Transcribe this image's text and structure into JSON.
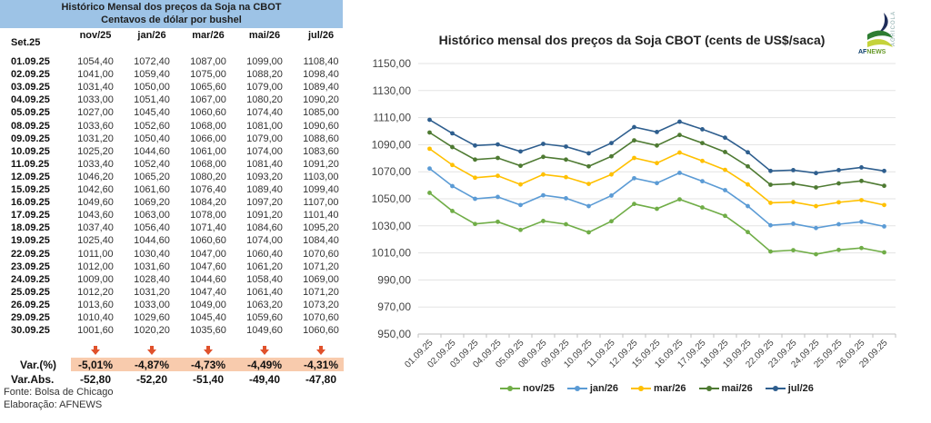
{
  "table": {
    "title": "Histórico Mensal dos preços da Soja na CBOT",
    "subtitle": "Centavos de dólar por bushel",
    "row_header": "Set.25",
    "columns": [
      "nov/25",
      "jan/26",
      "mar/26",
      "mai/26",
      "jul/26"
    ],
    "rows": [
      {
        "date": "01.09.25",
        "values": [
          "1054,40",
          "1072,40",
          "1087,00",
          "1099,00",
          "1108,40"
        ]
      },
      {
        "date": "02.09.25",
        "values": [
          "1041,00",
          "1059,40",
          "1075,00",
          "1088,20",
          "1098,40"
        ]
      },
      {
        "date": "03.09.25",
        "values": [
          "1031,40",
          "1050,00",
          "1065,60",
          "1079,00",
          "1089,40"
        ]
      },
      {
        "date": "04.09.25",
        "values": [
          "1033,00",
          "1051,40",
          "1067,00",
          "1080,20",
          "1090,20"
        ]
      },
      {
        "date": "05.09.25",
        "values": [
          "1027,00",
          "1045,40",
          "1060,60",
          "1074,40",
          "1085,00"
        ]
      },
      {
        "date": "08.09.25",
        "values": [
          "1033,60",
          "1052,60",
          "1068,00",
          "1081,00",
          "1090,60"
        ]
      },
      {
        "date": "09.09.25",
        "values": [
          "1031,20",
          "1050,40",
          "1066,00",
          "1079,00",
          "1088,60"
        ]
      },
      {
        "date": "10.09.25",
        "values": [
          "1025,20",
          "1044,60",
          "1061,00",
          "1074,00",
          "1083,60"
        ]
      },
      {
        "date": "11.09.25",
        "values": [
          "1033,40",
          "1052,40",
          "1068,00",
          "1081,40",
          "1091,20"
        ]
      },
      {
        "date": "12.09.25",
        "values": [
          "1046,20",
          "1065,20",
          "1080,20",
          "1093,20",
          "1103,00"
        ]
      },
      {
        "date": "15.09.25",
        "values": [
          "1042,60",
          "1061,60",
          "1076,40",
          "1089,40",
          "1099,40"
        ]
      },
      {
        "date": "16.09.25",
        "values": [
          "1049,60",
          "1069,20",
          "1084,20",
          "1097,20",
          "1107,00"
        ]
      },
      {
        "date": "17.09.25",
        "values": [
          "1043,60",
          "1063,00",
          "1078,00",
          "1091,20",
          "1101,40"
        ]
      },
      {
        "date": "18.09.25",
        "values": [
          "1037,40",
          "1056,40",
          "1071,40",
          "1084,60",
          "1095,20"
        ]
      },
      {
        "date": "19.09.25",
        "values": [
          "1025,40",
          "1044,60",
          "1060,60",
          "1074,00",
          "1084,40"
        ]
      },
      {
        "date": "22.09.25",
        "values": [
          "1011,00",
          "1030,40",
          "1047,00",
          "1060,40",
          "1070,60"
        ]
      },
      {
        "date": "23.09.25",
        "values": [
          "1012,00",
          "1031,60",
          "1047,60",
          "1061,20",
          "1071,20"
        ]
      },
      {
        "date": "24.09.25",
        "values": [
          "1009,00",
          "1028,40",
          "1044,60",
          "1058,40",
          "1069,00"
        ]
      },
      {
        "date": "25.09.25",
        "values": [
          "1012,20",
          "1031,20",
          "1047,40",
          "1061,40",
          "1071,20"
        ]
      },
      {
        "date": "26.09.25",
        "values": [
          "1013,60",
          "1033,00",
          "1049,00",
          "1063,20",
          "1073,20"
        ]
      },
      {
        "date": "29.09.25",
        "values": [
          "1010,40",
          "1029,60",
          "1045,40",
          "1059,60",
          "1070,60"
        ]
      },
      {
        "date": "30.09.25",
        "values": [
          "1001,60",
          "1020,20",
          "1035,60",
          "1049,60",
          "1060,60"
        ]
      }
    ],
    "var_pct_label": "Var.(%)",
    "var_pct": [
      "-5,01%",
      "-4,87%",
      "-4,73%",
      "-4,49%",
      "-4,31%"
    ],
    "var_abs_label": "Var.Abs.",
    "var_abs": [
      "-52,80",
      "-52,20",
      "-51,40",
      "-49,40",
      "-47,80"
    ],
    "trend_icon": "down-arrow-icon",
    "source": "Fonte: Bolsa de Chicago",
    "credit": "Elaboração: AFNEWS",
    "colors": {
      "header_bg": "#9dc3e6",
      "var_band": "#f8cbad",
      "arrow": "#e0512b"
    }
  },
  "logo": {
    "brand": "AF",
    "brand2": "NEWS",
    "tagline": "AGRÍCOLA"
  },
  "chart_data": {
    "type": "line",
    "title": "Histórico mensal dos preços da Soja CBOT (cents de US$/saca)",
    "xlabel": "",
    "ylabel": "",
    "ylim": [
      950,
      1150
    ],
    "yticks": [
      950,
      970,
      990,
      1010,
      1030,
      1050,
      1070,
      1090,
      1110,
      1130,
      1150
    ],
    "ytick_labels": [
      "950,00",
      "970,00",
      "990,00",
      "1010,00",
      "1030,00",
      "1050,00",
      "1070,00",
      "1090,00",
      "1110,00",
      "1130,00",
      "1150,00"
    ],
    "grid": true,
    "legend_position": "bottom",
    "x": [
      "01.09.25",
      "02.09.25",
      "03.09.25",
      "04.09.25",
      "05.09.25",
      "08.09.25",
      "09.09.25",
      "10.09.25",
      "11.09.25",
      "12.09.25",
      "15.09.25",
      "16.09.25",
      "17.09.25",
      "18.09.25",
      "19.09.25",
      "22.09.25",
      "23.09.25",
      "24.09.25",
      "25.09.25",
      "26.09.25",
      "29.09.25"
    ],
    "series": [
      {
        "name": "nov/25",
        "color": "#70ad47",
        "values": [
          1054.4,
          1041.0,
          1031.4,
          1033.0,
          1027.0,
          1033.6,
          1031.2,
          1025.2,
          1033.4,
          1046.2,
          1042.6,
          1049.6,
          1043.6,
          1037.4,
          1025.4,
          1011.0,
          1012.0,
          1009.0,
          1012.2,
          1013.6,
          1010.4
        ]
      },
      {
        "name": "jan/26",
        "color": "#5b9bd5",
        "values": [
          1072.4,
          1059.4,
          1050.0,
          1051.4,
          1045.4,
          1052.6,
          1050.4,
          1044.6,
          1052.4,
          1065.2,
          1061.6,
          1069.2,
          1063.0,
          1056.4,
          1044.6,
          1030.4,
          1031.6,
          1028.4,
          1031.2,
          1033.0,
          1029.6
        ]
      },
      {
        "name": "mar/26",
        "color": "#ffc000",
        "values": [
          1087.0,
          1075.0,
          1065.6,
          1067.0,
          1060.6,
          1068.0,
          1066.0,
          1061.0,
          1068.0,
          1080.2,
          1076.4,
          1084.2,
          1078.0,
          1071.4,
          1060.6,
          1047.0,
          1047.6,
          1044.6,
          1047.4,
          1049.0,
          1045.4
        ]
      },
      {
        "name": "mai/26",
        "color": "#4e7a32",
        "values": [
          1099.0,
          1088.2,
          1079.0,
          1080.2,
          1074.4,
          1081.0,
          1079.0,
          1074.0,
          1081.4,
          1093.2,
          1089.4,
          1097.2,
          1091.2,
          1084.6,
          1074.0,
          1060.4,
          1061.2,
          1058.4,
          1061.4,
          1063.2,
          1059.6
        ]
      },
      {
        "name": "jul/26",
        "color": "#2e5e8e",
        "values": [
          1108.4,
          1098.4,
          1089.4,
          1090.2,
          1085.0,
          1090.6,
          1088.6,
          1083.6,
          1091.2,
          1103.0,
          1099.4,
          1107.0,
          1101.4,
          1095.2,
          1084.4,
          1070.6,
          1071.2,
          1069.0,
          1071.2,
          1073.2,
          1070.6
        ]
      }
    ]
  }
}
